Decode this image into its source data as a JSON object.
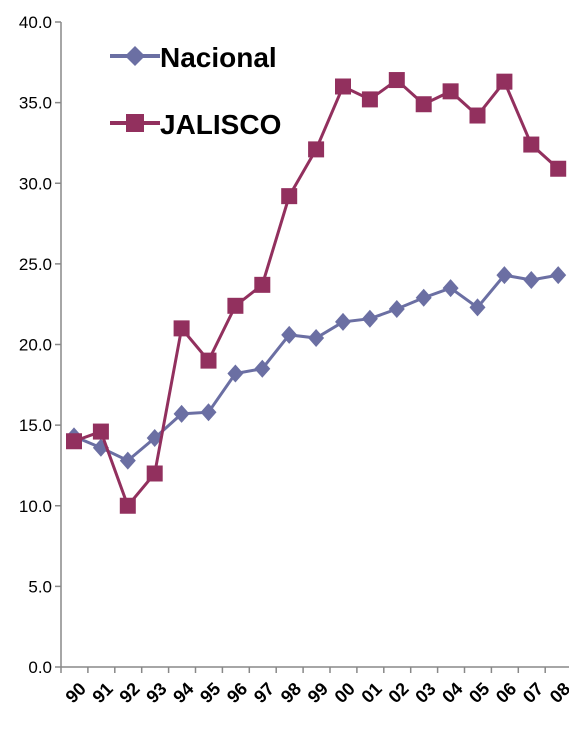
{
  "chart_data": {
    "type": "line",
    "title": "",
    "xlabel": "",
    "ylabel": "",
    "categories": [
      "90",
      "91",
      "92",
      "93",
      "94",
      "95",
      "96",
      "97",
      "98",
      "99",
      "00",
      "01",
      "02",
      "03",
      "04",
      "05",
      "06",
      "07",
      "08"
    ],
    "ylim": [
      0,
      40
    ],
    "yticks": [
      "0.0",
      "5.0",
      "10.0",
      "15.0",
      "20.0",
      "25.0",
      "30.0",
      "35.0",
      "40.0"
    ],
    "grid": false,
    "legend_position": "top-left",
    "series": [
      {
        "name": "Nacional",
        "color": "#6b6fa3",
        "marker": "diamond",
        "values": [
          14.3,
          13.6,
          12.8,
          14.2,
          15.7,
          15.8,
          18.2,
          18.5,
          20.6,
          20.4,
          21.4,
          21.6,
          22.2,
          22.9,
          23.5,
          22.3,
          24.3,
          24.0,
          24.3
        ]
      },
      {
        "name": "JALISCO",
        "color": "#92305e",
        "marker": "square",
        "values": [
          14.0,
          14.6,
          10.0,
          12.0,
          21.0,
          19.0,
          22.4,
          23.7,
          29.2,
          32.1,
          36.0,
          35.2,
          36.4,
          34.9,
          35.7,
          34.2,
          36.3,
          32.4,
          30.9
        ]
      }
    ]
  }
}
